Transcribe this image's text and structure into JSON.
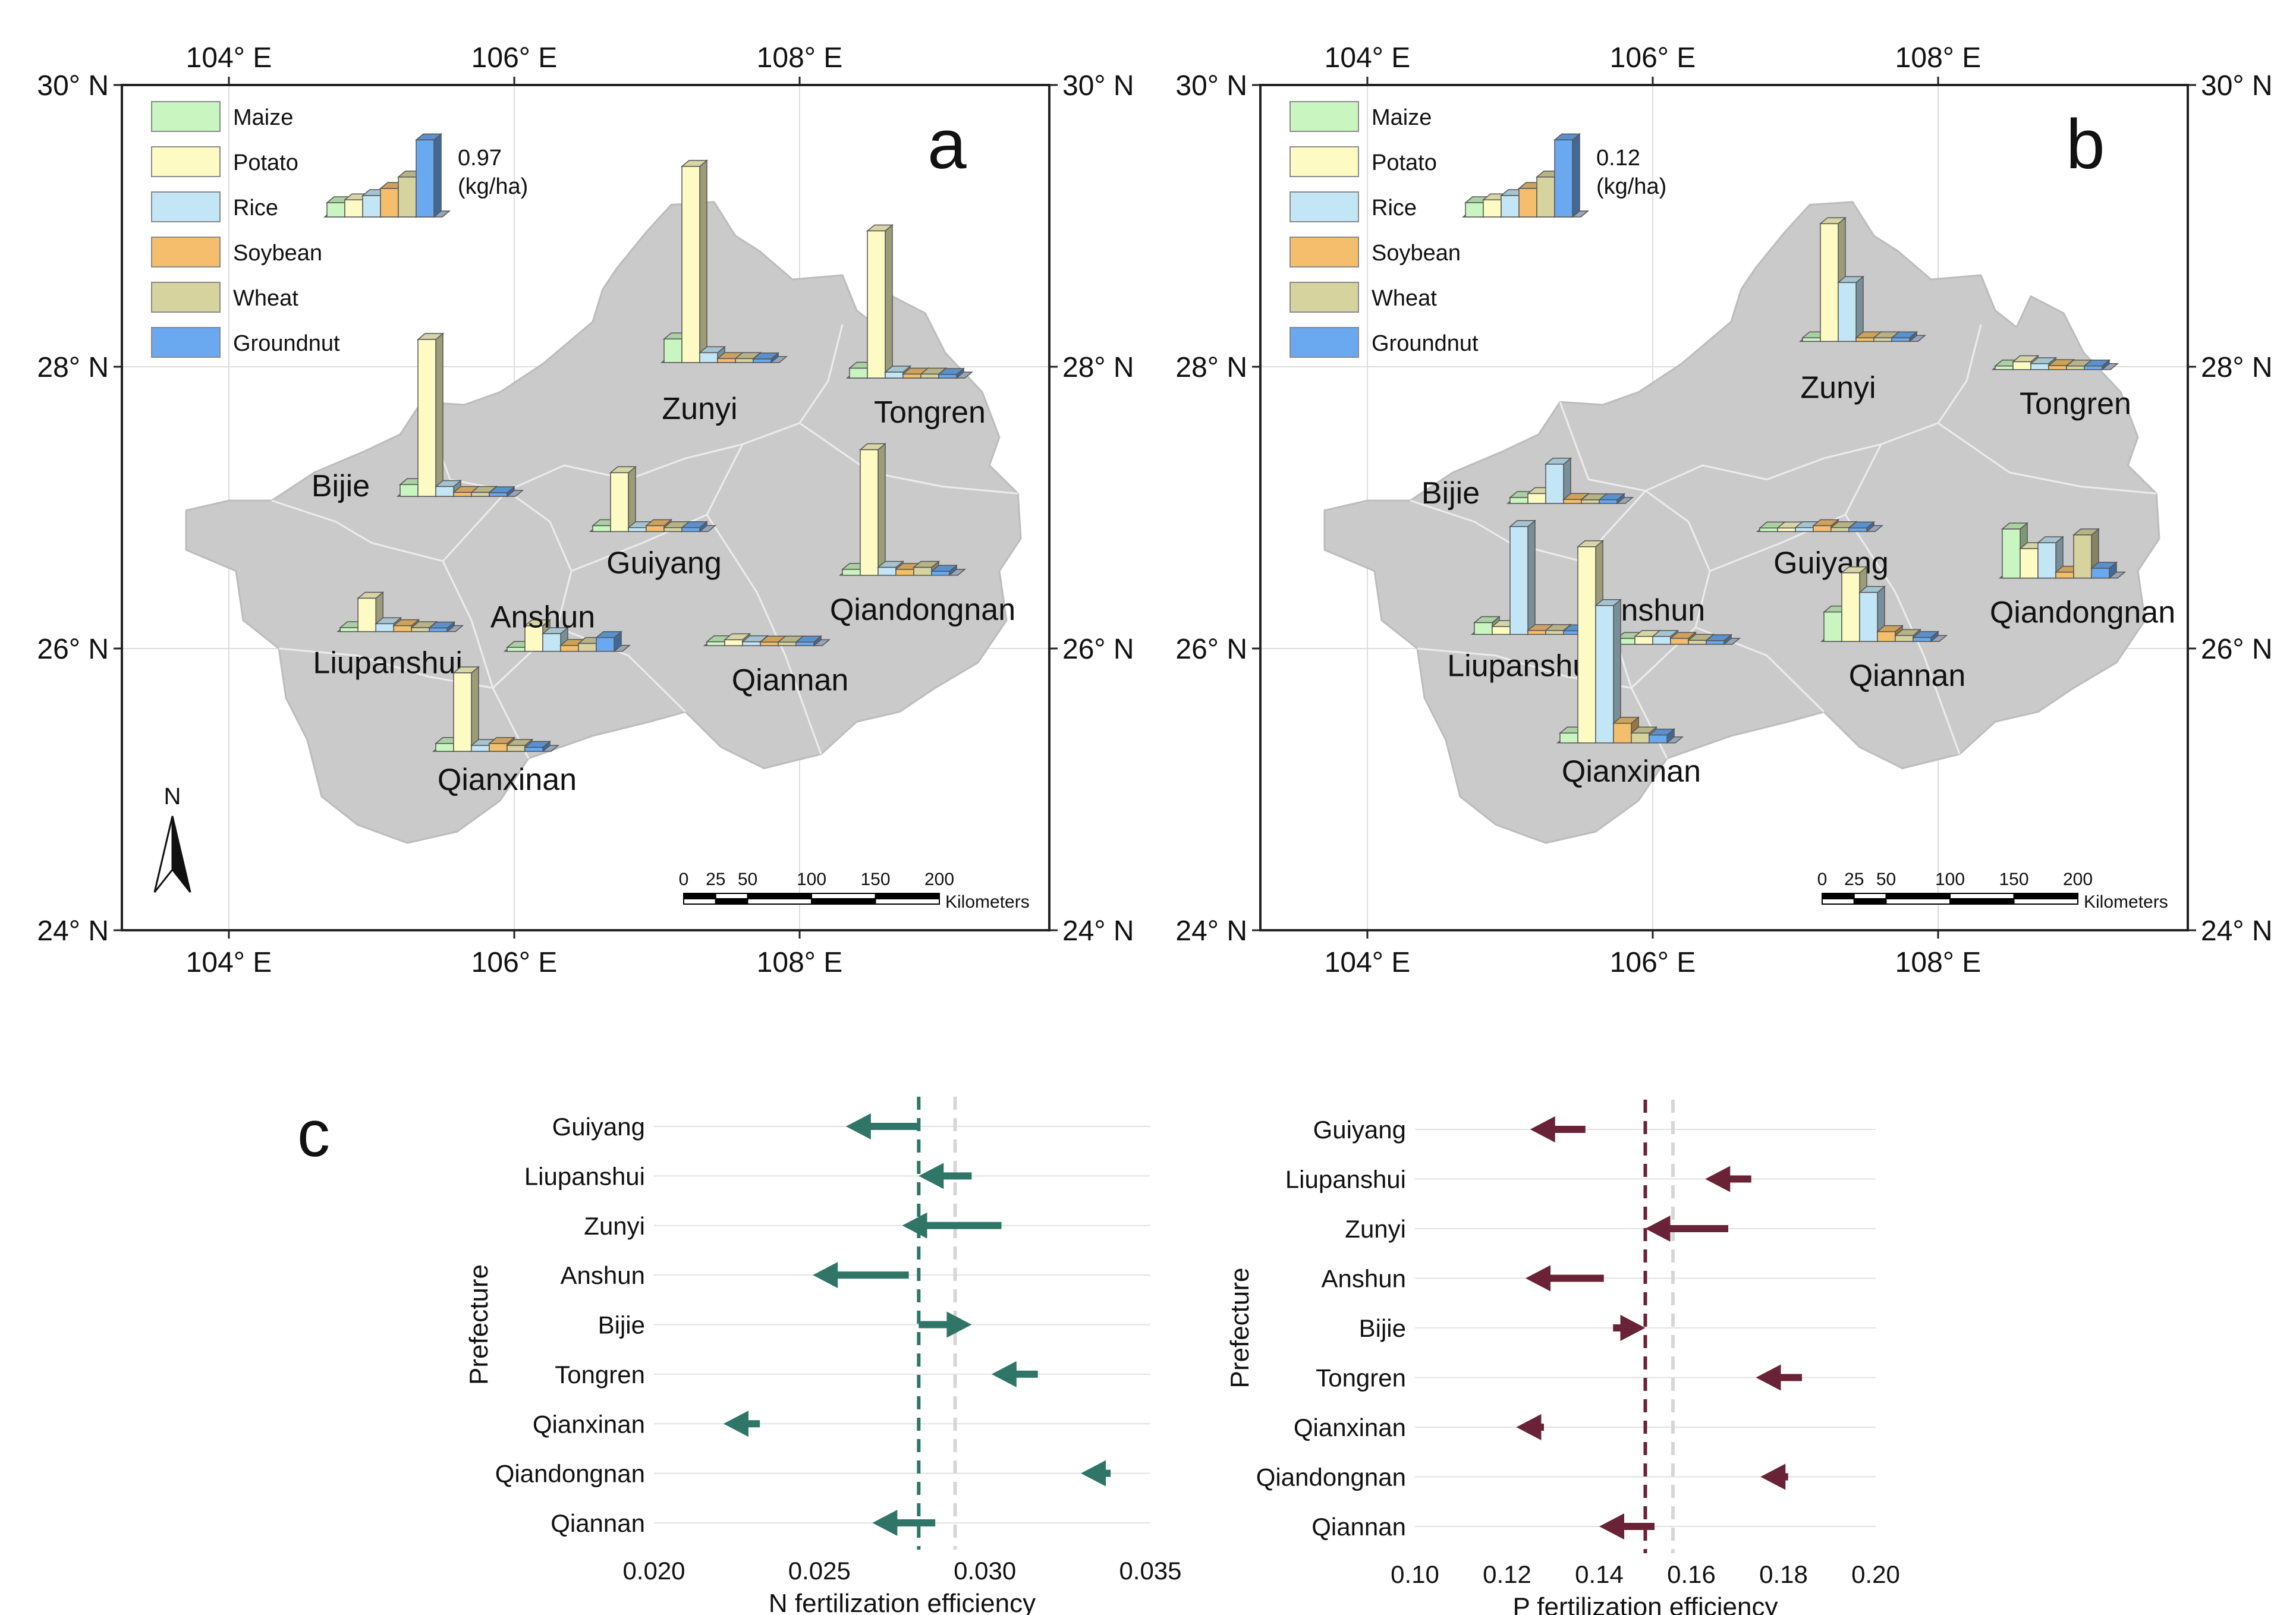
{
  "colors": {
    "crops": [
      "#c9f5c0",
      "#fdfbc3",
      "#c2e6f6",
      "#f4be6c",
      "#d6d39f",
      "#6aa9f0"
    ],
    "map_fill": "#cacaca",
    "n_arrow": "#2f7668",
    "p_arrow": "#6a2236",
    "grid": "#e2e2e2",
    "ref_line": "#d6d6d6"
  },
  "maps": [
    {
      "panel": "a",
      "unit_value": "0.97",
      "unit_label": "(kg/ha)",
      "legend": [
        "Maize",
        "Potato",
        "Rice",
        "Soybean",
        "Wheat",
        "Groundnut"
      ],
      "lon_ticks": [
        "104° E",
        "106° E",
        "108° E"
      ],
      "lat_ticks": [
        "30° N",
        "28° N",
        "26° N",
        "24° N"
      ],
      "north": "N",
      "scale_ticks": [
        "0",
        "25",
        "50",
        "100",
        "150",
        "200"
      ],
      "scale_unit": "Kilometers",
      "prefectures": [
        {
          "name": "Zunyi",
          "lon": 107.05,
          "lat": 28.03,
          "values": [
            0.12,
            1.0,
            0.05,
            0.02,
            0.02,
            0.01
          ]
        },
        {
          "name": "Tongren",
          "lon": 108.35,
          "lat": 27.92,
          "values": [
            0.05,
            0.75,
            0.03,
            0.02,
            0.02,
            0.01
          ]
        },
        {
          "name": "Bijie",
          "lon": 105.2,
          "lat": 27.08,
          "values": [
            0.06,
            0.8,
            0.05,
            0.02,
            0.02,
            0.01
          ]
        },
        {
          "name": "Guiyang",
          "lon": 106.55,
          "lat": 26.83,
          "values": [
            0.03,
            0.3,
            0.02,
            0.03,
            0.02,
            0.02
          ]
        },
        {
          "name": "Qiandongnan",
          "lon": 108.3,
          "lat": 26.52,
          "values": [
            0.03,
            0.64,
            0.04,
            0.03,
            0.04,
            0.02
          ]
        },
        {
          "name": "Liupanshui",
          "lon": 104.78,
          "lat": 26.12,
          "values": [
            0.02,
            0.17,
            0.04,
            0.03,
            0.02,
            0.01
          ]
        },
        {
          "name": "Anshun",
          "lon": 105.95,
          "lat": 25.98,
          "values": [
            0.02,
            0.13,
            0.09,
            0.03,
            0.04,
            0.07
          ]
        },
        {
          "name": "Qiannan",
          "lon": 107.35,
          "lat": 26.02,
          "values": [
            0.02,
            0.03,
            0.02,
            0.01,
            0.01,
            0.01
          ]
        },
        {
          "name": "Qianxinan",
          "lon": 105.45,
          "lat": 25.27,
          "values": [
            0.04,
            0.4,
            0.03,
            0.04,
            0.03,
            0.02
          ]
        }
      ]
    },
    {
      "panel": "b",
      "unit_value": "0.12",
      "unit_label": "(kg/ha)",
      "legend": [
        "Maize",
        "Potato",
        "Rice",
        "Soybean",
        "Wheat",
        "Groundnut"
      ],
      "lon_ticks": [
        "104° E",
        "106° E",
        "108° E"
      ],
      "lat_ticks": [
        "30° N",
        "28° N",
        "26° N",
        "24° N"
      ],
      "scale_ticks": [
        "0",
        "25",
        "50",
        "100",
        "150",
        "200"
      ],
      "scale_unit": "Kilometers",
      "prefectures": [
        {
          "name": "Zunyi",
          "lon": 107.05,
          "lat": 28.18,
          "values": [
            0.01,
            0.6,
            0.3,
            0.01,
            0.01,
            0.01
          ]
        },
        {
          "name": "Tongren",
          "lon": 108.4,
          "lat": 27.98,
          "values": [
            0.01,
            0.04,
            0.03,
            0.02,
            0.01,
            0.01
          ]
        },
        {
          "name": "Bijie",
          "lon": 105.0,
          "lat": 27.03,
          "values": [
            0.03,
            0.05,
            0.2,
            0.02,
            0.01,
            0.01
          ]
        },
        {
          "name": "Guiyang",
          "lon": 106.75,
          "lat": 26.83,
          "values": [
            0.01,
            0.01,
            0.02,
            0.03,
            0.02,
            0.01
          ]
        },
        {
          "name": "Qiandongnan",
          "lon": 108.45,
          "lat": 26.5,
          "values": [
            0.25,
            0.15,
            0.18,
            0.03,
            0.22,
            0.05
          ]
        },
        {
          "name": "Liupanshui",
          "lon": 104.75,
          "lat": 26.1,
          "values": [
            0.06,
            0.04,
            0.55,
            0.02,
            0.02,
            0.01
          ]
        },
        {
          "name": "Anshun",
          "lon": 105.75,
          "lat": 26.03,
          "values": [
            0.03,
            0.04,
            0.04,
            0.03,
            0.02,
            0.01
          ]
        },
        {
          "name": "Qiannan",
          "lon": 107.2,
          "lat": 26.05,
          "values": [
            0.15,
            0.35,
            0.25,
            0.05,
            0.03,
            0.02
          ]
        },
        {
          "name": "Qianxinan",
          "lon": 105.35,
          "lat": 25.33,
          "values": [
            0.05,
            1.0,
            0.7,
            0.1,
            0.05,
            0.04
          ]
        }
      ]
    }
  ],
  "chart_data": [
    {
      "type": "arrow",
      "panel": "c",
      "title": "",
      "xlabel": "N fertilization efficiency",
      "ylabel": "Prefecture",
      "xlim": [
        0.02,
        0.035
      ],
      "xticks": [
        "0.020",
        "0.025",
        "0.030",
        "0.035"
      ],
      "mean_line": 0.028,
      "ref_line": 0.0291,
      "categories": [
        "Guiyang",
        "Liupanshui",
        "Zunyi",
        "Anshun",
        "Bijie",
        "Tongren",
        "Qianxinan",
        "Qiandongnan",
        "Qiannan"
      ],
      "start": [
        0.028,
        0.0296,
        0.0305,
        0.0277,
        0.028,
        0.0316,
        0.0232,
        0.0338,
        0.0285
      ],
      "end": [
        0.0258,
        0.028,
        0.0275,
        0.0248,
        0.0296,
        0.0302,
        0.0221,
        0.0329,
        0.0266
      ]
    },
    {
      "type": "arrow",
      "panel": "c",
      "title": "",
      "xlabel": "P fertilization efficiency",
      "ylabel": "Prefecture",
      "xlim": [
        0.1,
        0.2
      ],
      "xticks": [
        "0.10",
        "0.12",
        "0.14",
        "0.16",
        "0.18",
        "0.20"
      ],
      "mean_line": 0.15,
      "ref_line": 0.156,
      "categories": [
        "Guiyang",
        "Liupanshui",
        "Zunyi",
        "Anshun",
        "Bijie",
        "Tongren",
        "Qianxinan",
        "Qiandongnan",
        "Qiannan"
      ],
      "start": [
        0.137,
        0.173,
        0.168,
        0.141,
        0.143,
        0.184,
        0.128,
        0.181,
        0.152
      ],
      "end": [
        0.125,
        0.163,
        0.15,
        0.124,
        0.15,
        0.174,
        0.122,
        0.175,
        0.14
      ]
    }
  ],
  "panel_c_label": "c"
}
